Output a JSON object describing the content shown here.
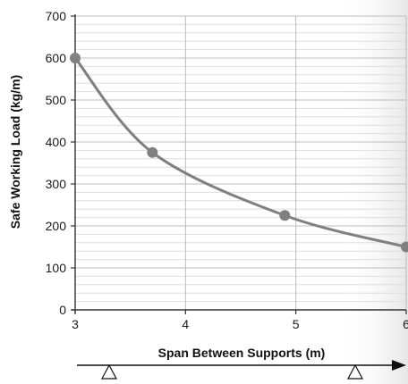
{
  "chart_data": {
    "type": "line",
    "xlabel": "Span Between Supports (m)",
    "ylabel": "Safe Working Load (kg/m)",
    "xlim": [
      3,
      6
    ],
    "ylim": [
      0,
      700
    ],
    "x_ticks": [
      "3",
      "4",
      "5",
      "6"
    ],
    "y_ticks": [
      "0",
      "100",
      "200",
      "300",
      "400",
      "500",
      "600",
      "700"
    ],
    "grid": true,
    "smooth": true,
    "series": [
      {
        "x": [
          3,
          3.7,
          4.9,
          6
        ],
        "values": [
          600,
          375,
          225,
          150
        ]
      }
    ],
    "colors": {
      "line": "#808080",
      "marker": "#808080",
      "major_grid": "#bdbdbd",
      "minor_grid": "#dedede",
      "axis": "#333333"
    },
    "support_icons": [
      "triangle",
      "triangle"
    ],
    "span_arrow": true
  }
}
